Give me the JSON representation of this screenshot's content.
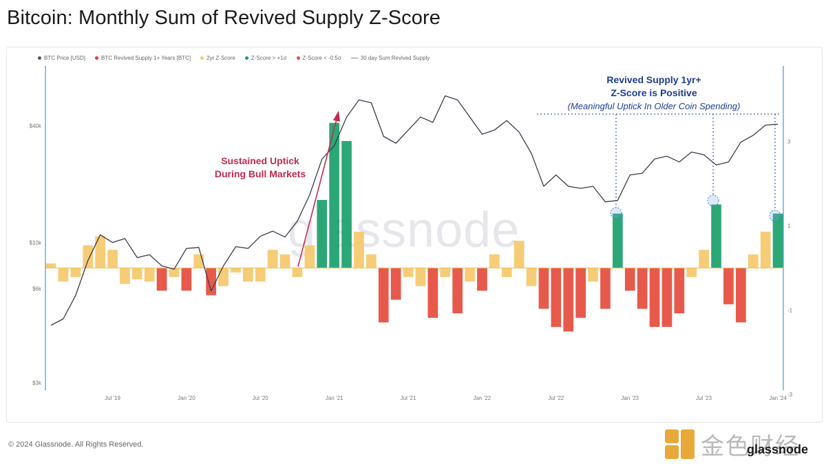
{
  "title": "Bitcoin: Monthly Sum of Revived Supply Z-Score",
  "legend": [
    {
      "label": "BTC Price [USD]",
      "color": "#555555",
      "kind": "dot"
    },
    {
      "label": "BTC Revived Supply 1+ Years [BTC]",
      "color": "#e03a3a",
      "kind": "dot"
    },
    {
      "label": "2yr Z-Score",
      "color": "#f5c86a",
      "kind": "dot"
    },
    {
      "label": "Z-Score > +1σ",
      "color": "#1aa06a",
      "kind": "dot"
    },
    {
      "label": "Z-Score < -0.5σ",
      "color": "#e54b3c",
      "kind": "dot"
    },
    {
      "label": "30 day Sum Revived Supply",
      "color": "#888888",
      "kind": "line"
    }
  ],
  "watermark": "glassnode",
  "annotations": {
    "bull": [
      "Sustained Uptick",
      "During Bull Markets"
    ],
    "revived": {
      "line1": "Revived Supply 1yr+",
      "line2": "Z-Score is Positive",
      "line3": "(Meaningful Uptick In Older Coin Spending)"
    }
  },
  "footer": {
    "copyright": "© 2024 Glassnode. All Rights Reserved.",
    "logo_text": "金色财经",
    "brand": "glassnode"
  },
  "colors": {
    "price": "#3a3a4a",
    "zpos": "#f5c86a",
    "zneg": "#f5c86a",
    "zhigh": "#1aa06a",
    "zlow": "#e54b3c",
    "axis": "#3a9bd5",
    "annotation_red": "#c42a4d",
    "annotation_blue": "#1d3d8f"
  },
  "chart_data": {
    "type": "area",
    "x_tick_labels": [
      "Jul '19",
      "Jan '20",
      "Jul '20",
      "Jan '21",
      "Jul '21",
      "Jan '22",
      "Jul '22",
      "Jan '23",
      "Jul '23",
      "Jan '24"
    ],
    "y_left_ticks": [
      "$40k",
      "$10k",
      "$6k",
      "$3k"
    ],
    "y_right_ticks": [
      "3",
      "1",
      "-1",
      "-3"
    ],
    "y_right_range": [
      -3,
      3.5
    ],
    "log_scale_left": true,
    "series": [
      {
        "name": "BTC Price [USD]",
        "x": [
          "2019-02",
          "2019-03",
          "2019-04",
          "2019-05",
          "2019-06",
          "2019-07",
          "2019-08",
          "2019-09",
          "2019-10",
          "2019-11",
          "2019-12",
          "2020-01",
          "2020-02",
          "2020-03",
          "2020-04",
          "2020-05",
          "2020-06",
          "2020-07",
          "2020-08",
          "2020-09",
          "2020-10",
          "2020-11",
          "2020-12",
          "2021-01",
          "2021-02",
          "2021-03",
          "2021-04",
          "2021-05",
          "2021-06",
          "2021-07",
          "2021-08",
          "2021-09",
          "2021-10",
          "2021-11",
          "2021-12",
          "2022-01",
          "2022-02",
          "2022-03",
          "2022-04",
          "2022-05",
          "2022-06",
          "2022-07",
          "2022-08",
          "2022-09",
          "2022-10",
          "2022-11",
          "2022-12",
          "2023-01",
          "2023-02",
          "2023-03",
          "2023-04",
          "2023-05",
          "2023-06",
          "2023-07",
          "2023-08",
          "2023-09",
          "2023-10",
          "2023-11",
          "2023-12",
          "2024-01"
        ],
        "values": [
          3600,
          3900,
          5200,
          8000,
          11000,
          10000,
          10500,
          8300,
          8600,
          7500,
          7200,
          9300,
          9400,
          5500,
          7500,
          9500,
          9300,
          10800,
          11500,
          10700,
          13000,
          18000,
          28000,
          33000,
          47000,
          58000,
          56000,
          37000,
          34000,
          40000,
          47000,
          44000,
          61000,
          58000,
          47000,
          38000,
          40000,
          45000,
          39000,
          30000,
          20000,
          23000,
          20000,
          19500,
          20000,
          16500,
          16800,
          23000,
          23500,
          28000,
          29000,
          27000,
          30500,
          29500,
          26000,
          27000,
          34500,
          37500,
          42500,
          43000
        ]
      },
      {
        "name": "2yr Z-Score",
        "x": [
          "2019-02",
          "2019-03",
          "2019-04",
          "2019-05",
          "2019-06",
          "2019-07",
          "2019-08",
          "2019-09",
          "2019-10",
          "2019-11",
          "2019-12",
          "2020-01",
          "2020-02",
          "2020-03",
          "2020-04",
          "2020-05",
          "2020-06",
          "2020-07",
          "2020-08",
          "2020-09",
          "2020-10",
          "2020-11",
          "2020-12",
          "2021-01",
          "2021-02",
          "2021-03",
          "2021-04",
          "2021-05",
          "2021-06",
          "2021-07",
          "2021-08",
          "2021-09",
          "2021-10",
          "2021-11",
          "2021-12",
          "2022-01",
          "2022-02",
          "2022-03",
          "2022-04",
          "2022-05",
          "2022-06",
          "2022-07",
          "2022-08",
          "2022-09",
          "2022-10",
          "2022-11",
          "2022-12",
          "2023-01",
          "2023-02",
          "2023-03",
          "2023-04",
          "2023-05",
          "2023-06",
          "2023-07",
          "2023-08",
          "2023-09",
          "2023-10",
          "2023-11",
          "2023-12",
          "2024-01"
        ],
        "values": [
          0.1,
          -0.3,
          -0.2,
          0.5,
          0.7,
          0.4,
          -0.35,
          -0.25,
          -0.3,
          -0.5,
          -0.2,
          -0.5,
          0.3,
          -0.6,
          -0.4,
          -0.1,
          -0.3,
          -0.3,
          0.4,
          0.3,
          -0.2,
          0.5,
          1.5,
          3.2,
          2.8,
          0.8,
          0.3,
          -1.2,
          -0.7,
          -0.2,
          -0.4,
          -1.1,
          -0.2,
          -1.0,
          -0.3,
          -0.5,
          0.3,
          -0.2,
          0.6,
          -0.4,
          -0.9,
          -1.3,
          -1.4,
          -1.1,
          -0.3,
          -0.9,
          1.2,
          -0.5,
          -0.9,
          -1.3,
          -1.3,
          -1.0,
          -0.2,
          0.4,
          1.4,
          -0.8,
          -1.2,
          0.3,
          0.8,
          1.2
        ]
      }
    ]
  }
}
